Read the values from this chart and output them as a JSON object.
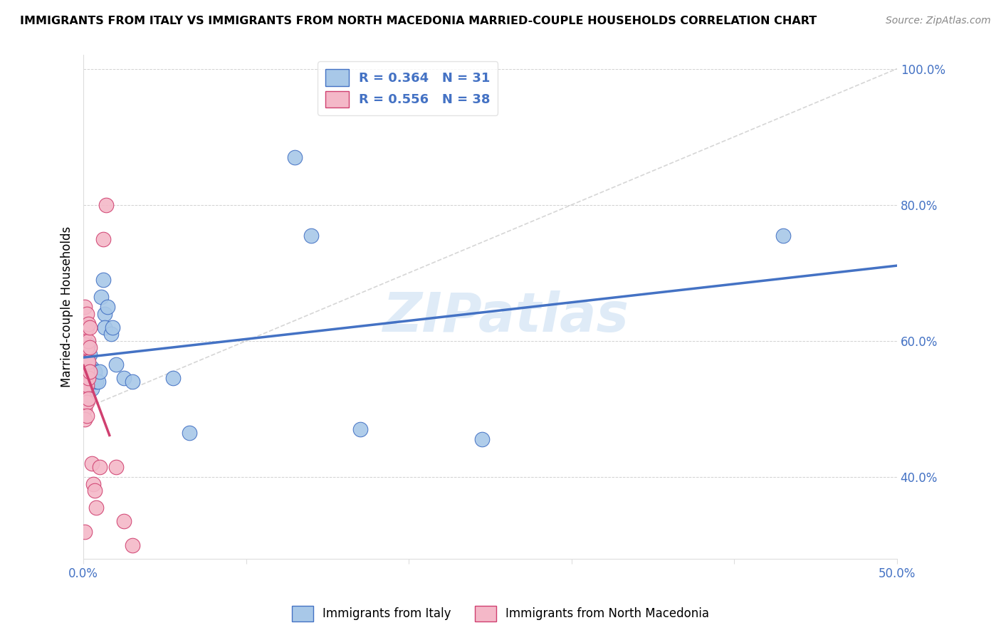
{
  "title": "IMMIGRANTS FROM ITALY VS IMMIGRANTS FROM NORTH MACEDONIA MARRIED-COUPLE HOUSEHOLDS CORRELATION CHART",
  "source": "Source: ZipAtlas.com",
  "xlabel_italy": "Immigrants from Italy",
  "xlabel_macedonia": "Immigrants from North Macedonia",
  "ylabel": "Married-couple Households",
  "R_italy": 0.364,
  "N_italy": 31,
  "R_macedonia": 0.556,
  "N_macedonia": 38,
  "color_italy": "#a8c8e8",
  "color_italy_line": "#4472c4",
  "color_macedonia": "#f4b8c8",
  "color_macedonia_line": "#d04070",
  "watermark": "ZIPatlas",
  "xlim": [
    0.0,
    0.5
  ],
  "ylim": [
    0.28,
    1.02
  ],
  "italy_points": [
    [
      0.001,
      0.535
    ],
    [
      0.001,
      0.565
    ],
    [
      0.002,
      0.555
    ],
    [
      0.002,
      0.575
    ],
    [
      0.003,
      0.595
    ],
    [
      0.003,
      0.545
    ],
    [
      0.004,
      0.58
    ],
    [
      0.005,
      0.56
    ],
    [
      0.005,
      0.53
    ],
    [
      0.006,
      0.555
    ],
    [
      0.007,
      0.555
    ],
    [
      0.008,
      0.54
    ],
    [
      0.009,
      0.54
    ],
    [
      0.01,
      0.555
    ],
    [
      0.011,
      0.665
    ],
    [
      0.012,
      0.69
    ],
    [
      0.013,
      0.64
    ],
    [
      0.013,
      0.62
    ],
    [
      0.015,
      0.65
    ],
    [
      0.017,
      0.61
    ],
    [
      0.018,
      0.62
    ],
    [
      0.02,
      0.565
    ],
    [
      0.025,
      0.545
    ],
    [
      0.03,
      0.54
    ],
    [
      0.055,
      0.545
    ],
    [
      0.065,
      0.465
    ],
    [
      0.13,
      0.87
    ],
    [
      0.14,
      0.755
    ],
    [
      0.17,
      0.47
    ],
    [
      0.245,
      0.455
    ],
    [
      0.43,
      0.755
    ]
  ],
  "macedonia_points": [
    [
      0.001,
      0.65
    ],
    [
      0.001,
      0.62
    ],
    [
      0.001,
      0.61
    ],
    [
      0.001,
      0.595
    ],
    [
      0.001,
      0.575
    ],
    [
      0.001,
      0.555
    ],
    [
      0.001,
      0.545
    ],
    [
      0.001,
      0.535
    ],
    [
      0.001,
      0.515
    ],
    [
      0.001,
      0.5
    ],
    [
      0.001,
      0.485
    ],
    [
      0.001,
      0.32
    ],
    [
      0.002,
      0.64
    ],
    [
      0.002,
      0.62
    ],
    [
      0.002,
      0.59
    ],
    [
      0.002,
      0.57
    ],
    [
      0.002,
      0.555
    ],
    [
      0.002,
      0.535
    ],
    [
      0.002,
      0.51
    ],
    [
      0.002,
      0.49
    ],
    [
      0.003,
      0.625
    ],
    [
      0.003,
      0.6
    ],
    [
      0.003,
      0.57
    ],
    [
      0.003,
      0.545
    ],
    [
      0.003,
      0.515
    ],
    [
      0.004,
      0.62
    ],
    [
      0.004,
      0.59
    ],
    [
      0.004,
      0.555
    ],
    [
      0.005,
      0.42
    ],
    [
      0.006,
      0.39
    ],
    [
      0.007,
      0.38
    ],
    [
      0.008,
      0.355
    ],
    [
      0.01,
      0.415
    ],
    [
      0.012,
      0.75
    ],
    [
      0.014,
      0.8
    ],
    [
      0.02,
      0.415
    ],
    [
      0.025,
      0.335
    ],
    [
      0.03,
      0.3
    ]
  ]
}
